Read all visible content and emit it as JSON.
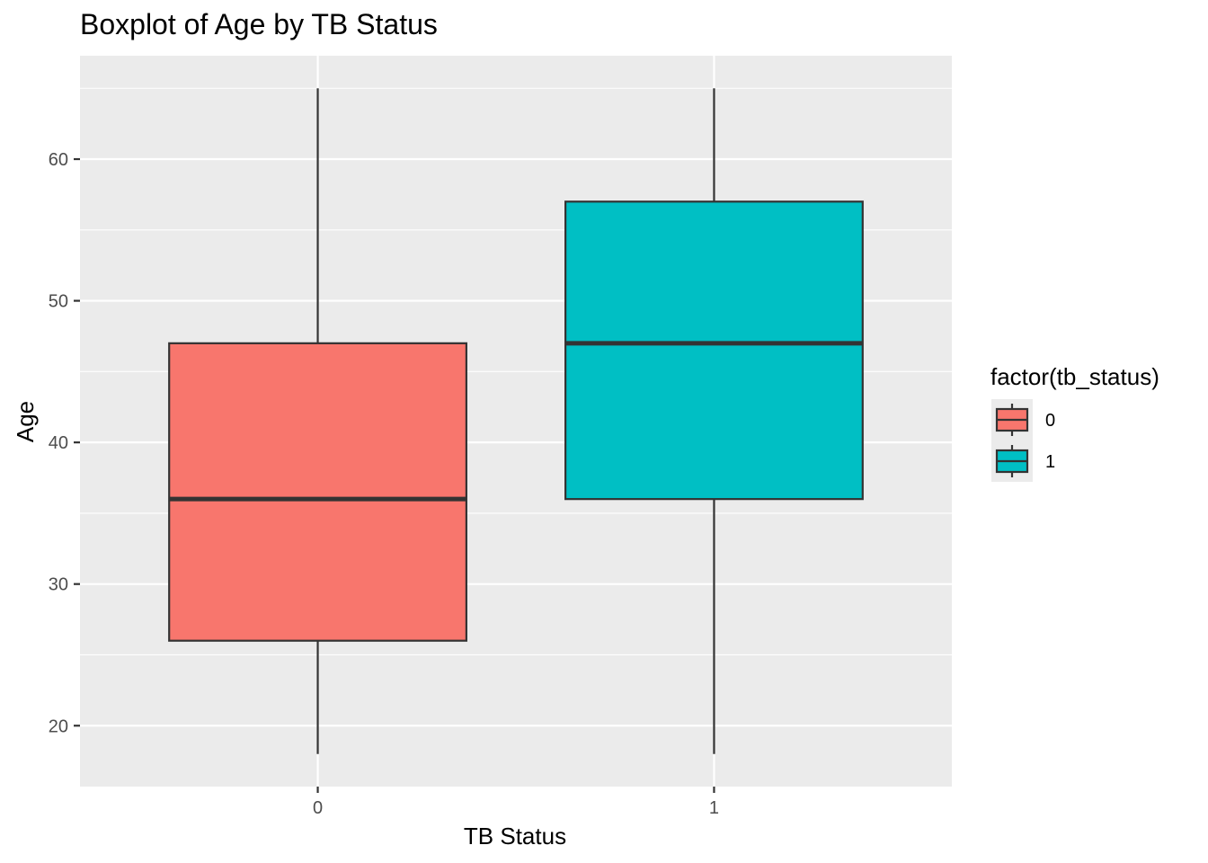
{
  "chart_data": {
    "type": "boxplot",
    "title": "Boxplot of Age by TB Status",
    "xlabel": "TB Status",
    "ylabel": "Age",
    "categories": [
      "0",
      "1"
    ],
    "boxes": [
      {
        "category": "0",
        "min": 18,
        "q1": 26,
        "median": 36,
        "q3": 47,
        "max": 65,
        "color": "#F8766D"
      },
      {
        "category": "1",
        "min": 18,
        "q1": 36,
        "median": 47,
        "q3": 57,
        "max": 65,
        "color": "#00BFC4"
      }
    ],
    "ylim": [
      15.7,
      67.3
    ],
    "yticks": [
      20,
      30,
      40,
      50,
      60
    ],
    "ytick_labels": [
      "20",
      "30",
      "40",
      "50",
      "60"
    ],
    "grid": true,
    "legend": {
      "title": "factor(tb_status)",
      "position": "right",
      "entries": [
        {
          "label": "0",
          "color": "#F8766D"
        },
        {
          "label": "1",
          "color": "#00BFC4"
        }
      ]
    },
    "colors": {
      "panel_background": "#EBEBEB",
      "grid": "#FFFFFF",
      "box_outline": "#333333"
    }
  }
}
